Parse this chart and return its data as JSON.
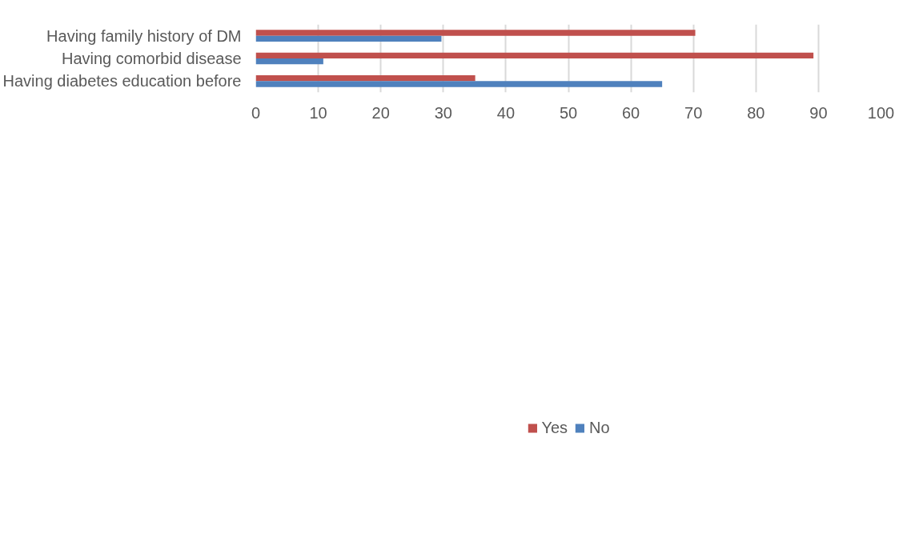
{
  "chart_data": {
    "type": "bar",
    "orientation": "horizontal",
    "categories": [
      "Having family history of DM",
      "Having comorbid disease",
      "Having diabetes education before"
    ],
    "series": [
      {
        "name": "Yes",
        "color": "#c0504d",
        "values": [
          70.3,
          89.2,
          35.1
        ]
      },
      {
        "name": "No",
        "color": "#4f81bd",
        "values": [
          29.7,
          10.8,
          65.0
        ]
      }
    ],
    "xlim": [
      0,
      100
    ],
    "xticks": [
      0,
      10,
      20,
      30,
      40,
      50,
      60,
      70,
      80,
      90,
      100
    ],
    "grid": "x",
    "legend": "bottom"
  }
}
